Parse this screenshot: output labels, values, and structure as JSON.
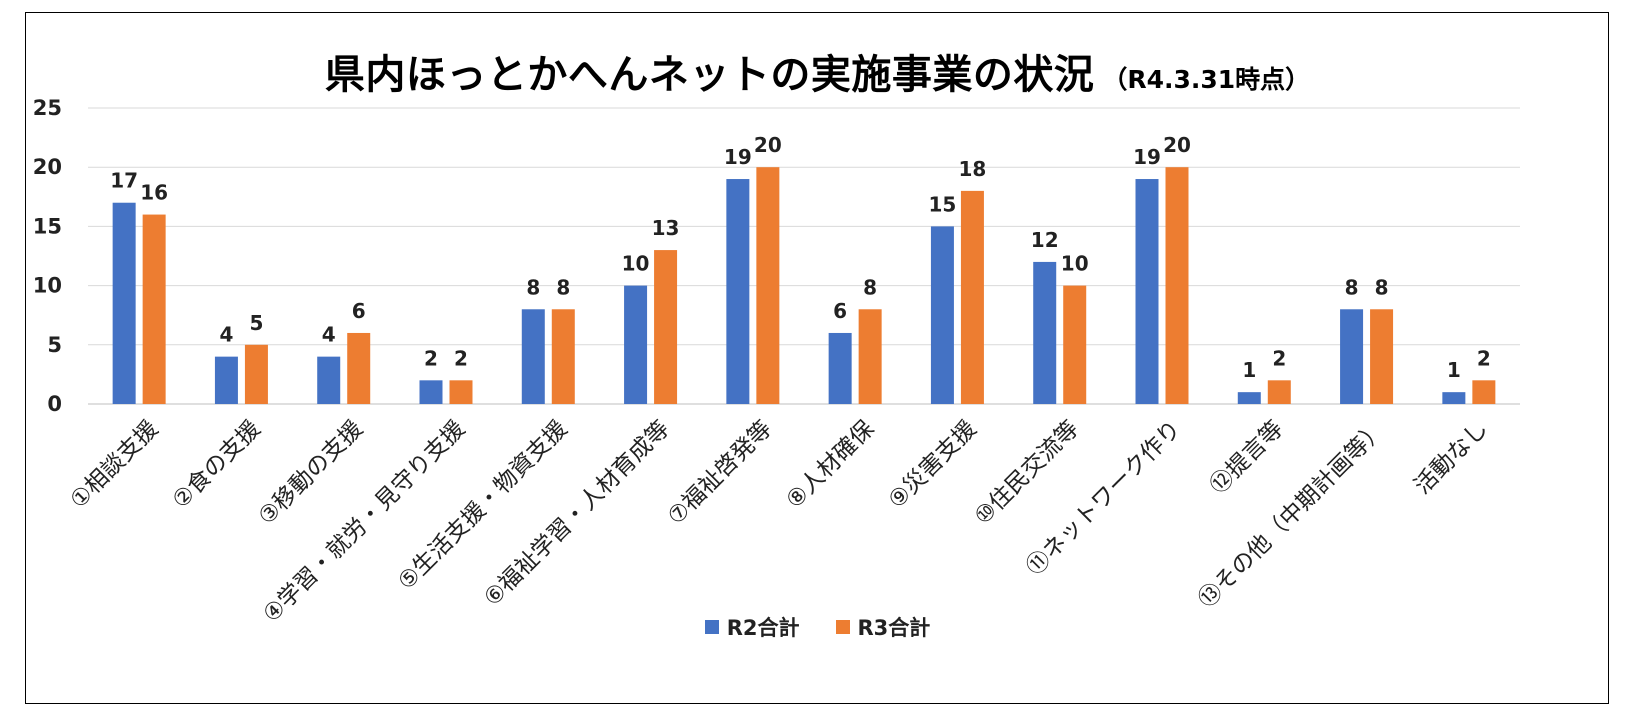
{
  "title": "県内ほっとかへんネットの実施事業の状況",
  "subtitle": "（R4.3.31時点）",
  "chart_data": {
    "type": "bar",
    "title": "県内ほっとかへんネットの実施事業の状況",
    "subtitle": "（R4.3.31時点）",
    "categories": [
      "①相談支援",
      "②食の支援",
      "③移動の支援",
      "④学習・就労・見守り支援",
      "⑤生活支援・物資支援",
      "⑥福祉学習・人材育成等",
      "⑦福祉啓発等",
      "⑧人材確保",
      "⑨災害支援",
      "⑩住民交流等",
      "⑪ネットワーク作り",
      "⑫提言等",
      "⑬その他（中期計画等）",
      "活動なし"
    ],
    "series": [
      {
        "name": "R2合計",
        "color": "#4472C4",
        "values": [
          17,
          4,
          4,
          2,
          8,
          10,
          19,
          6,
          15,
          12,
          19,
          1,
          8,
          1
        ]
      },
      {
        "name": "R3合計",
        "color": "#ED7D31",
        "values": [
          16,
          5,
          6,
          2,
          8,
          13,
          20,
          8,
          18,
          10,
          20,
          2,
          8,
          2
        ]
      }
    ],
    "ylim": [
      0,
      25
    ],
    "yticks": [
      0,
      5,
      10,
      15,
      20,
      25
    ],
    "grid": true,
    "legend_position": "bottom",
    "data_labels": true
  }
}
